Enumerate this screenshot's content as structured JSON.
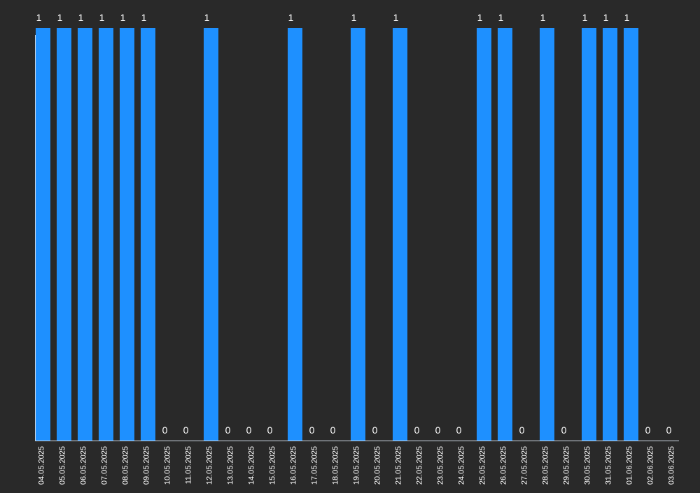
{
  "chart_data": {
    "type": "bar",
    "title": "",
    "xlabel": "",
    "ylabel": "",
    "ylim": [
      0,
      1
    ],
    "grid": false,
    "legend": "none",
    "bar_color": "#1e90ff",
    "axis_color": "#cfd8e3",
    "label_color": "#ffffff",
    "background": "#292929",
    "categories": [
      "04.05.2025",
      "05.05.2025",
      "06.05.2025",
      "07.05.2025",
      "08.05.2025",
      "09.05.2025",
      "10.05.2025",
      "11.05.2025",
      "12.05.2025",
      "13.05.2025",
      "14.05.2025",
      "15.05.2025",
      "16.05.2025",
      "17.05.2025",
      "18.05.2025",
      "19.05.2025",
      "20.05.2025",
      "21.05.2025",
      "22.05.2025",
      "23.05.2025",
      "24.05.2025",
      "25.05.2025",
      "26.05.2025",
      "27.05.2025",
      "28.05.2025",
      "29.05.2025",
      "30.05.2025",
      "31.05.2025",
      "01.06.2025",
      "02.06.2025",
      "03.06.2025"
    ],
    "values": [
      1,
      1,
      1,
      1,
      1,
      1,
      0,
      0,
      1,
      0,
      0,
      0,
      1,
      0,
      0,
      1,
      0,
      1,
      0,
      0,
      0,
      1,
      1,
      0,
      1,
      0,
      1,
      1,
      1,
      0,
      0
    ],
    "data_labels": [
      "1",
      "1",
      "1",
      "1",
      "1",
      "1",
      "0",
      "0",
      "1",
      "0",
      "0",
      "0",
      "1",
      "0",
      "0",
      "1",
      "0",
      "1",
      "0",
      "0",
      "0",
      "1",
      "1",
      "0",
      "1",
      "0",
      "1",
      "1",
      "1",
      "0",
      "0"
    ]
  }
}
